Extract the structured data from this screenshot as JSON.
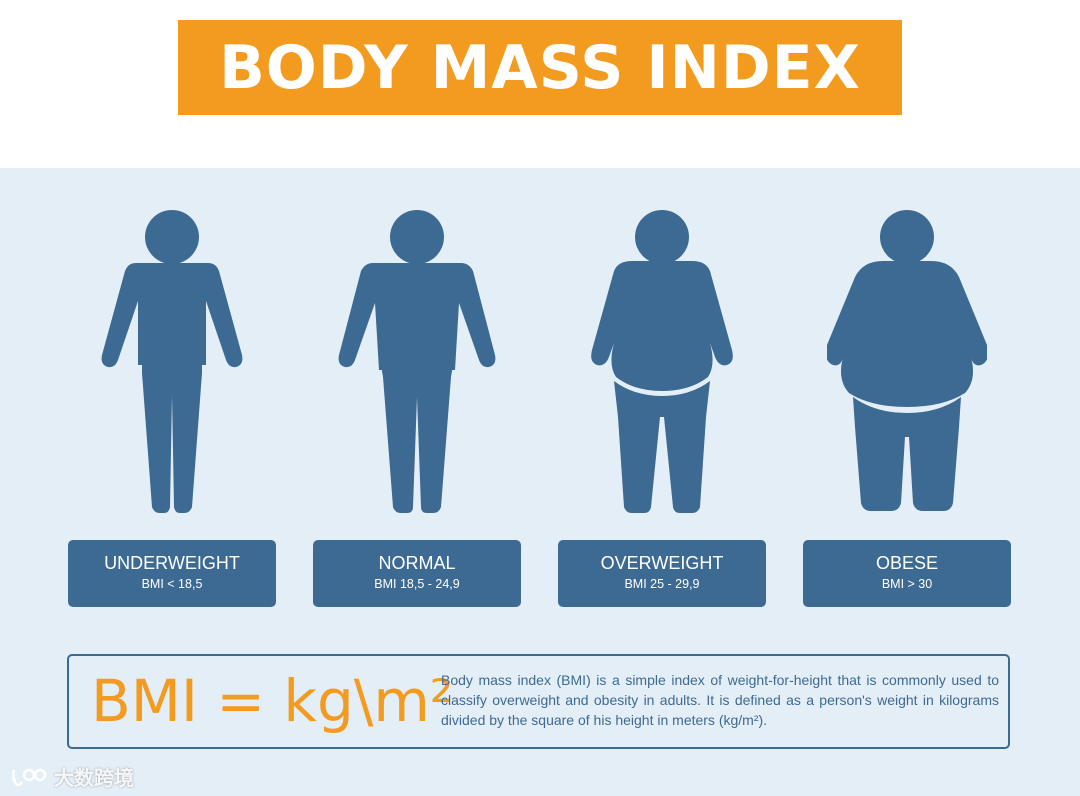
{
  "title": "BODY MASS INDEX",
  "colors": {
    "accent": "#f39b1f",
    "figure": "#3d6a93",
    "panel": "#e4eef7"
  },
  "categories": [
    {
      "name": "UNDERWEIGHT",
      "range": "BMI < 18,5",
      "icon": "underweight-person-icon"
    },
    {
      "name": "NORMAL",
      "range": "BMI 18,5 - 24,9",
      "icon": "normal-person-icon"
    },
    {
      "name": "OVERWEIGHT",
      "range": "BMI 25 - 29,9",
      "icon": "overweight-person-icon"
    },
    {
      "name": "OBESE",
      "range": "BMI > 30",
      "icon": "obese-person-icon"
    }
  ],
  "formula": "BMI = kg\\m²",
  "description": "Body mass index (BMI) is a simple index of weight-for-height that is commonly used to classify overweight and obesity in adults. It is defined as a person's weight in kilograms divided by the square of his height in meters (kg/m²).",
  "watermark": {
    "text": "大数跨境",
    "icon": "watermark-logo-icon"
  }
}
